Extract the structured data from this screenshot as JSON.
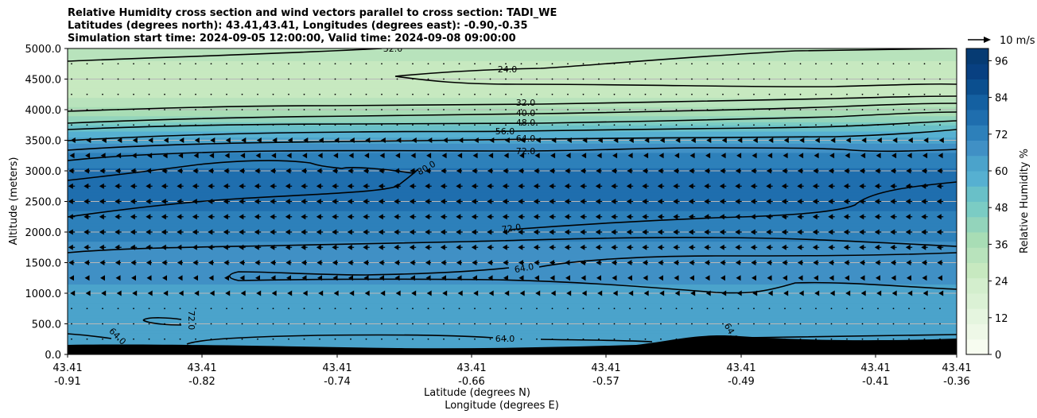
{
  "header": {
    "line1": "Relative Humidity cross section and wind vectors parallel to cross section: TADI_WE",
    "line2": "Latitudes (degrees north): 43.41,43.41, Longitudes (degrees east): -0.90,-0.35",
    "line3": "Simulation start time: 2024-09-05 12:00:00, Valid time: 2024-09-08 09:00:00"
  },
  "chart_data": {
    "type": "contour-cross-section",
    "title": "Relative Humidity cross section and wind vectors parallel to cross section: TADI_WE",
    "ylabel": "Altitude (meters)",
    "xlabel_lat": "Latitude (degrees N)",
    "xlabel_lon": "Longitude (degrees E)",
    "ylim": [
      0,
      5000
    ],
    "yticks": [
      "0.0",
      "500.0",
      "1000.0",
      "1500.0",
      "2000.0",
      "2500.0",
      "3000.0",
      "3500.0",
      "4000.0",
      "4500.0",
      "5000.0"
    ],
    "xticks_lat": [
      "43.41",
      "43.41",
      "43.41",
      "43.41",
      "43.41",
      "43.41",
      "43.41",
      "43.41"
    ],
    "xticks_lon": [
      "-0.91",
      "-0.82",
      "-0.74",
      "-0.66",
      "-0.57",
      "-0.49",
      "-0.41",
      "-0.36"
    ],
    "grid_horizontal": true,
    "colorbar": {
      "label": "Relative Humidity %",
      "ticks": [
        0,
        12,
        24,
        36,
        48,
        60,
        72,
        84,
        96
      ],
      "range": [
        0,
        100
      ],
      "colormap": "GnBu",
      "colors": [
        "#f7fcf0",
        "#eef8e7",
        "#e5f5df",
        "#dbf1d5",
        "#d3eecd",
        "#c7e9c0",
        "#b8e3bc",
        "#a8ddb5",
        "#93d4bb",
        "#7bccc4",
        "#69c0c8",
        "#56b0d1",
        "#4ba3cb",
        "#4090c5",
        "#2d80ba",
        "#1f6eae",
        "#1460a1",
        "#0b4f8f",
        "#084081",
        "#063b73"
      ]
    },
    "rh_profile": [
      {
        "alt": 0,
        "rh": 62
      },
      {
        "alt": 500,
        "rh": 63
      },
      {
        "alt": 1000,
        "rh": 64
      },
      {
        "alt": 1500,
        "rh": 67
      },
      {
        "alt": 2000,
        "rh": 71
      },
      {
        "alt": 2500,
        "rh": 77
      },
      {
        "alt": 3000,
        "rh": 76
      },
      {
        "alt": 3300,
        "rh": 70
      },
      {
        "alt": 3600,
        "rh": 58
      },
      {
        "alt": 3900,
        "rh": 40
      },
      {
        "alt": 4200,
        "rh": 30
      },
      {
        "alt": 4600,
        "rh": 26
      },
      {
        "alt": 5000,
        "rh": 34
      }
    ],
    "contour_labels": [
      "32.0",
      "24.0",
      "32.0",
      "40.0",
      "48.0",
      "56.0",
      "64.0",
      "72.0",
      "80.0",
      "72.0",
      "64.0",
      "64.0",
      "72.0",
      "64.0",
      "64.0"
    ],
    "wind_legend": "10 m/s",
    "wind_rows": [
      {
        "alt": 250,
        "speed": 0.4
      },
      {
        "alt": 500,
        "speed": 0.3
      },
      {
        "alt": 750,
        "speed": 0.5
      },
      {
        "alt": 1000,
        "speed": 1.5
      },
      {
        "alt": 1250,
        "speed": 2.5
      },
      {
        "alt": 1500,
        "speed": 3.0
      },
      {
        "alt": 1750,
        "speed": 3.5
      },
      {
        "alt": 2000,
        "speed": 3.5
      },
      {
        "alt": 2250,
        "speed": 3.5
      },
      {
        "alt": 2500,
        "speed": 3.5
      },
      {
        "alt": 2750,
        "speed": 3.5
      },
      {
        "alt": 3000,
        "speed": 3.0
      },
      {
        "alt": 3250,
        "speed": 2.0
      },
      {
        "alt": 3500,
        "speed": 1.0
      },
      {
        "alt": 3750,
        "speed": 0.5
      },
      {
        "alt": 4000,
        "speed": 0.3
      },
      {
        "alt": 4250,
        "speed": 0.2
      },
      {
        "alt": 4500,
        "speed": 0.2
      },
      {
        "alt": 4750,
        "speed": 0.2
      }
    ]
  }
}
